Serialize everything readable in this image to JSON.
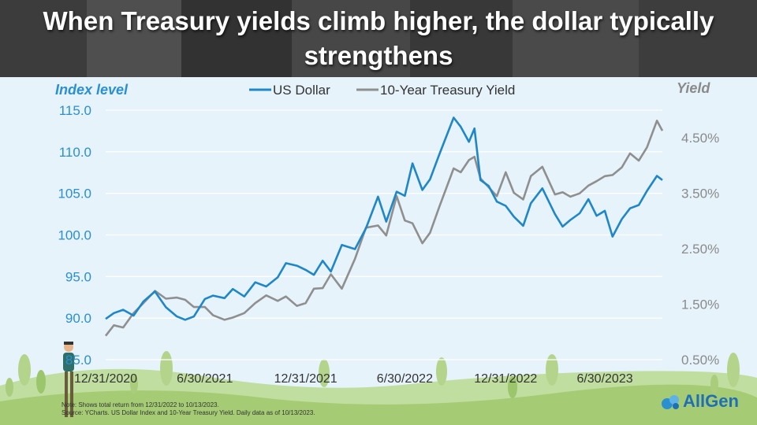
{
  "title": "When Treasury yields climb higher, the dollar typically strengthens",
  "note_line1": "Note: Shows total return from 12/31/2022 to 10/13/2023.",
  "note_line2": "Source: YCharts. US Dollar Index and 10-Year Treasury Yield. Daily data as of 10/13/2023.",
  "logo_text": "AllGen",
  "colors": {
    "usd": "#1f87c8",
    "yield": "#8f8f8f",
    "bg": "#e6f3fb",
    "grid": "#ffffff"
  },
  "chart_data": {
    "type": "line",
    "title": "When Treasury yields climb higher, the dollar typically strengthens",
    "left_axis": {
      "label": "Index level",
      "range": [
        85.0,
        115.0
      ],
      "ticks": [
        85.0,
        90.0,
        95.0,
        100.0,
        105.0,
        110.0,
        115.0
      ],
      "tick_labels": [
        "85.0",
        "90.0",
        "95.0",
        "100.0",
        "105.0",
        "110.0",
        "115.0"
      ]
    },
    "right_axis": {
      "label": "Yield",
      "unit": "%",
      "range": [
        0.5,
        5.0
      ],
      "ticks": [
        0.5,
        1.5,
        2.5,
        3.5,
        4.5
      ],
      "tick_labels": [
        "0.50%",
        "1.50%",
        "2.50%",
        "3.50%",
        "4.50%"
      ]
    },
    "x_tick_labels": [
      "12/31/2020",
      "6/30/2021",
      "12/31/2021",
      "6/30/2022",
      "12/31/2022",
      "6/30/2023"
    ],
    "x_ticks": [
      "2020-12-31",
      "2021-06-30",
      "2021-12-31",
      "2022-06-30",
      "2022-12-31",
      "2023-06-30"
    ],
    "x_range": [
      "2020-12-31",
      "2023-10-13"
    ],
    "grid": true,
    "legend_position": "top-center",
    "series": [
      {
        "name": "US Dollar",
        "axis": "left",
        "points": [
          [
            "2020-12-31",
            89.9
          ],
          [
            "2021-01-15",
            90.6
          ],
          [
            "2021-02-01",
            91.0
          ],
          [
            "2021-02-20",
            90.3
          ],
          [
            "2021-03-10",
            92.0
          ],
          [
            "2021-03-31",
            93.2
          ],
          [
            "2021-04-20",
            91.3
          ],
          [
            "2021-05-10",
            90.2
          ],
          [
            "2021-05-25",
            89.8
          ],
          [
            "2021-06-10",
            90.2
          ],
          [
            "2021-06-30",
            92.3
          ],
          [
            "2021-07-15",
            92.7
          ],
          [
            "2021-08-05",
            92.4
          ],
          [
            "2021-08-20",
            93.5
          ],
          [
            "2021-09-10",
            92.6
          ],
          [
            "2021-09-30",
            94.3
          ],
          [
            "2021-10-20",
            93.8
          ],
          [
            "2021-11-10",
            94.9
          ],
          [
            "2021-11-25",
            96.6
          ],
          [
            "2021-12-15",
            96.3
          ],
          [
            "2021-12-31",
            95.8
          ],
          [
            "2022-01-15",
            95.2
          ],
          [
            "2022-01-31",
            96.9
          ],
          [
            "2022-02-15",
            95.6
          ],
          [
            "2022-03-07",
            98.8
          ],
          [
            "2022-03-31",
            98.3
          ],
          [
            "2022-04-20",
            100.8
          ],
          [
            "2022-05-12",
            104.6
          ],
          [
            "2022-05-27",
            101.6
          ],
          [
            "2022-06-15",
            105.2
          ],
          [
            "2022-06-30",
            104.7
          ],
          [
            "2022-07-14",
            108.6
          ],
          [
            "2022-08-01",
            105.4
          ],
          [
            "2022-08-15",
            106.7
          ],
          [
            "2022-09-01",
            109.7
          ],
          [
            "2022-09-27",
            114.1
          ],
          [
            "2022-10-10",
            113.0
          ],
          [
            "2022-10-25",
            111.2
          ],
          [
            "2022-11-04",
            112.8
          ],
          [
            "2022-11-15",
            106.6
          ],
          [
            "2022-11-30",
            105.9
          ],
          [
            "2022-12-15",
            104.0
          ],
          [
            "2022-12-31",
            103.5
          ],
          [
            "2023-01-15",
            102.2
          ],
          [
            "2023-02-01",
            101.1
          ],
          [
            "2023-02-15",
            103.8
          ],
          [
            "2023-03-08",
            105.6
          ],
          [
            "2023-03-31",
            102.5
          ],
          [
            "2023-04-14",
            101.0
          ],
          [
            "2023-04-28",
            101.8
          ],
          [
            "2023-05-15",
            102.6
          ],
          [
            "2023-05-31",
            104.3
          ],
          [
            "2023-06-15",
            102.3
          ],
          [
            "2023-06-30",
            102.9
          ],
          [
            "2023-07-14",
            99.8
          ],
          [
            "2023-07-31",
            101.9
          ],
          [
            "2023-08-15",
            103.2
          ],
          [
            "2023-08-31",
            103.6
          ],
          [
            "2023-09-15",
            105.3
          ],
          [
            "2023-10-03",
            107.1
          ],
          [
            "2023-10-13",
            106.6
          ]
        ]
      },
      {
        "name": "10-Year Treasury Yield",
        "axis": "right",
        "points": [
          [
            "2020-12-31",
            0.93
          ],
          [
            "2021-01-15",
            1.12
          ],
          [
            "2021-02-01",
            1.08
          ],
          [
            "2021-02-20",
            1.34
          ],
          [
            "2021-03-10",
            1.52
          ],
          [
            "2021-03-31",
            1.74
          ],
          [
            "2021-04-20",
            1.6
          ],
          [
            "2021-05-10",
            1.62
          ],
          [
            "2021-05-25",
            1.58
          ],
          [
            "2021-06-10",
            1.45
          ],
          [
            "2021-06-30",
            1.45
          ],
          [
            "2021-07-15",
            1.3
          ],
          [
            "2021-08-05",
            1.22
          ],
          [
            "2021-08-20",
            1.26
          ],
          [
            "2021-09-10",
            1.34
          ],
          [
            "2021-09-30",
            1.52
          ],
          [
            "2021-10-20",
            1.66
          ],
          [
            "2021-11-10",
            1.56
          ],
          [
            "2021-11-25",
            1.64
          ],
          [
            "2021-12-15",
            1.47
          ],
          [
            "2021-12-31",
            1.52
          ],
          [
            "2022-01-15",
            1.78
          ],
          [
            "2022-01-31",
            1.79
          ],
          [
            "2022-02-15",
            2.04
          ],
          [
            "2022-03-07",
            1.78
          ],
          [
            "2022-03-31",
            2.32
          ],
          [
            "2022-04-20",
            2.88
          ],
          [
            "2022-05-12",
            2.92
          ],
          [
            "2022-05-27",
            2.74
          ],
          [
            "2022-06-15",
            3.45
          ],
          [
            "2022-06-30",
            3.01
          ],
          [
            "2022-07-14",
            2.96
          ],
          [
            "2022-08-01",
            2.6
          ],
          [
            "2022-08-15",
            2.79
          ],
          [
            "2022-09-01",
            3.26
          ],
          [
            "2022-09-27",
            3.95
          ],
          [
            "2022-10-10",
            3.88
          ],
          [
            "2022-10-25",
            4.1
          ],
          [
            "2022-11-04",
            4.16
          ],
          [
            "2022-11-15",
            3.77
          ],
          [
            "2022-11-30",
            3.61
          ],
          [
            "2022-12-15",
            3.45
          ],
          [
            "2022-12-31",
            3.88
          ],
          [
            "2023-01-15",
            3.51
          ],
          [
            "2023-02-01",
            3.39
          ],
          [
            "2023-02-15",
            3.81
          ],
          [
            "2023-03-08",
            3.98
          ],
          [
            "2023-03-31",
            3.48
          ],
          [
            "2023-04-14",
            3.52
          ],
          [
            "2023-04-28",
            3.44
          ],
          [
            "2023-05-15",
            3.5
          ],
          [
            "2023-05-31",
            3.64
          ],
          [
            "2023-06-15",
            3.72
          ],
          [
            "2023-06-30",
            3.81
          ],
          [
            "2023-07-14",
            3.83
          ],
          [
            "2023-07-31",
            3.97
          ],
          [
            "2023-08-15",
            4.22
          ],
          [
            "2023-08-31",
            4.09
          ],
          [
            "2023-09-15",
            4.33
          ],
          [
            "2023-10-03",
            4.81
          ],
          [
            "2023-10-13",
            4.63
          ]
        ]
      }
    ]
  }
}
